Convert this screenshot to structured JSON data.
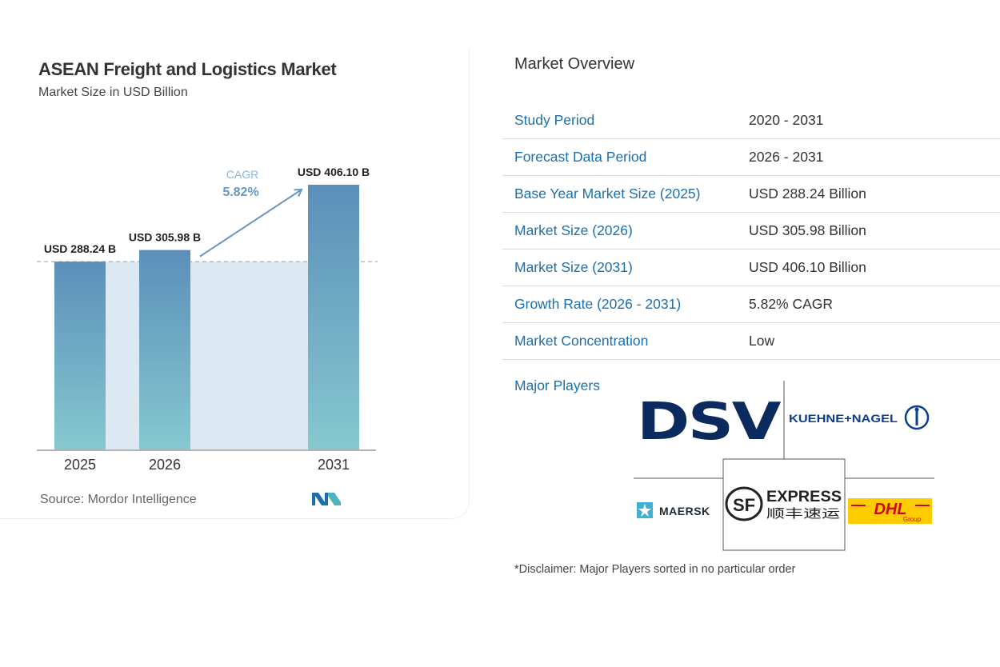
{
  "colors": {
    "bar_top": "#5b8fba",
    "bar_bottom": "#86c8cf",
    "band": "#dde9f2",
    "accent_blue": "#1a70ae",
    "cagr": "#6896bf"
  },
  "chart": {
    "title": "ASEAN Freight and Logistics Market",
    "subtitle": "Market Size in USD Billion",
    "source": "Source:  Mordor Intelligence",
    "cagr_label": "CAGR",
    "cagr_value": "5.82%"
  },
  "chart_data": {
    "type": "bar",
    "title": "ASEAN Freight and Logistics Market",
    "ylabel": "Market Size in USD Billion",
    "categories": [
      "2025",
      "2026",
      "2031"
    ],
    "values": [
      288.24,
      305.98,
      406.1
    ],
    "data_labels": [
      "USD 288.24 B",
      "USD 305.98 B",
      "USD 406.10 B"
    ],
    "annotation": "CAGR 5.82%",
    "ylim": [
      0,
      420
    ]
  },
  "overview": {
    "title": "Market Overview",
    "rows": [
      {
        "label": "Study Period",
        "value": "2020 - 2031"
      },
      {
        "label": "Forecast Data Period",
        "value": "2026 - 2031"
      },
      {
        "label": "Base Year Market Size (2025)",
        "value": "USD 288.24 Billion"
      },
      {
        "label": "Market Size (2026)",
        "value": "USD 305.98 Billion"
      },
      {
        "label": "Market Size (2031)",
        "value": "USD 406.10 Billion"
      },
      {
        "label": "Growth Rate (2026 - 2031)",
        "value": "5.82% CAGR"
      },
      {
        "label": "Market Concentration",
        "value": "Low"
      }
    ],
    "players_label": "Major Players",
    "players": {
      "dsv": "DSV",
      "kuehne": "KUEHNE+NAGEL",
      "maersk": "MAERSK",
      "sf_mark": "SF",
      "sf_express": "EXPRESS",
      "sf_chinese": "顺丰速运",
      "dhl": "DHL",
      "dhl_group": "Group"
    },
    "disclaimer": "*Disclaimer: Major Players sorted in no particular order"
  }
}
